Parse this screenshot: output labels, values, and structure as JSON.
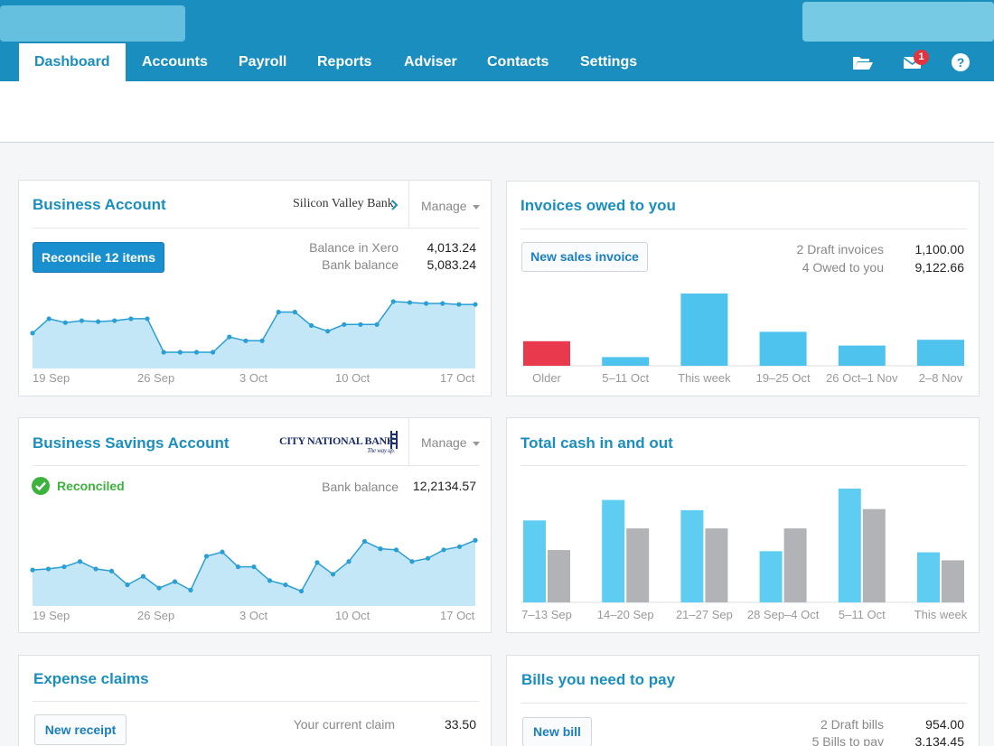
{
  "nav": {
    "tabs": [
      {
        "label": "Dashboard"
      },
      {
        "label": "Accounts"
      },
      {
        "label": "Payroll"
      },
      {
        "label": "Reports"
      },
      {
        "label": "Adviser"
      },
      {
        "label": "Contacts"
      },
      {
        "label": "Settings"
      }
    ],
    "icons": [
      "folder-icon",
      "mail-icon",
      "help-icon"
    ],
    "mail_badge": "1"
  },
  "business_account": {
    "title": "Business Account",
    "bank_name": "Silicon Valley Bank",
    "manage_label": "Manage",
    "reconcile_label": "Reconcile 12 items",
    "balance_xero_label": "Balance in Xero",
    "balance_xero_value": "4,013.24",
    "bank_balance_label": "Bank balance",
    "bank_balance_value": "5,083.24",
    "axis": [
      "19 Sep",
      "26 Sep",
      "3 Oct",
      "10 Oct",
      "17 Oct"
    ],
    "series": [
      3.7,
      5.2,
      4.8,
      5.0,
      4.9,
      5.0,
      5.2,
      5.2,
      1.7,
      1.7,
      1.7,
      1.7,
      3.3,
      2.9,
      2.9,
      5.9,
      5.9,
      4.5,
      3.9,
      4.6,
      4.6,
      4.6,
      7.0,
      6.9,
      6.8,
      6.8,
      6.7,
      6.7
    ],
    "colors": {
      "line": "#2a9fd6",
      "fill": "#c3e7f6"
    }
  },
  "savings_account": {
    "title": "Business Savings Account",
    "bank_logo_text": "CITY NATIONAL BANK",
    "bank_logo_tagline": "The way up.",
    "manage_label": "Manage",
    "reconciled_label": "Reconciled",
    "bank_balance_label": "Bank balance",
    "bank_balance_value": "12,2134.57",
    "axis": [
      "19 Sep",
      "26 Sep",
      "3 Oct",
      "10 Oct",
      "17 Oct"
    ],
    "series": [
      3.4,
      3.5,
      3.7,
      4.2,
      3.5,
      3.3,
      2.0,
      2.8,
      1.7,
      2.3,
      1.5,
      4.7,
      5.1,
      3.7,
      3.7,
      2.4,
      2.0,
      1.4,
      4.1,
      3.0,
      4.2,
      6.1,
      5.4,
      5.3,
      4.2,
      4.5,
      5.3,
      5.6,
      6.2
    ],
    "colors": {
      "line": "#2a9fd6",
      "fill": "#c3e7f6",
      "success": "#3db33d"
    }
  },
  "invoices": {
    "title": "Invoices owed to you",
    "new_label": "New sales invoice",
    "draft_label": "2 Draft invoices",
    "draft_value": "1,100.00",
    "owed_label": "4 Owed to you",
    "owed_value": "9,122.66",
    "chart_data": {
      "type": "bar",
      "categories": [
        "Older",
        "5–11 Oct",
        "This week",
        "19–25 Oct",
        "26 Oct–1 Nov",
        "2–8 Nov"
      ],
      "values": [
        34,
        12,
        100,
        47,
        28,
        36
      ],
      "colors": [
        "#e8394d",
        "#4dc3ee",
        "#4dc3ee",
        "#4dc3ee",
        "#4dc3ee",
        "#4dc3ee"
      ]
    }
  },
  "cash": {
    "title": "Total cash in and out",
    "chart_data": {
      "type": "bar",
      "categories": [
        "7–13 Sep",
        "14–20 Sep",
        "21–27 Sep",
        "28 Sep–4 Oct",
        "5–11 Oct",
        "This week"
      ],
      "series": [
        {
          "values": [
            72,
            90,
            81,
            45,
            100,
            44
          ],
          "color": "#5fcdf1"
        },
        {
          "values": [
            46,
            65,
            65,
            65,
            82,
            37
          ],
          "color": "#b1b3b6"
        }
      ]
    }
  },
  "expenses": {
    "title": "Expense claims",
    "new_label": "New receipt",
    "current_label": "Your current claim",
    "current_value": "33.50"
  },
  "bills": {
    "title": "Bills you need to pay",
    "new_label": "New bill",
    "draft_label": "2 Draft bills",
    "draft_value": "954.00",
    "pay_label": "5 Bills to pay",
    "pay_value": "3,134.45"
  }
}
